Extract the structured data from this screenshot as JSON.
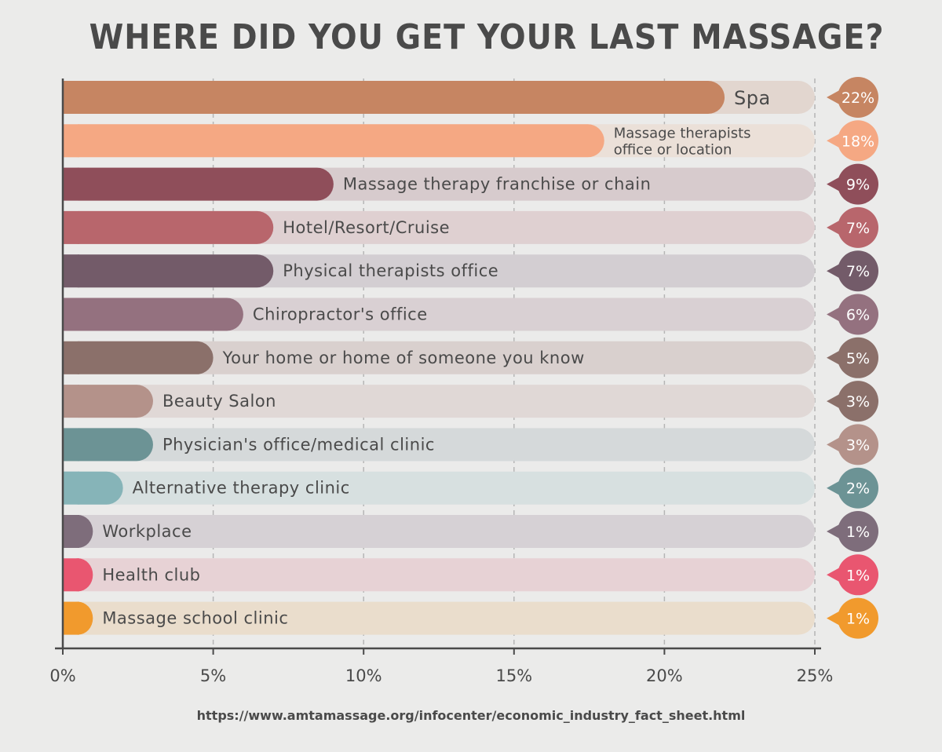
{
  "chart_data": {
    "type": "bar",
    "orientation": "horizontal",
    "title": "WHERE DID YOU GET YOUR LAST MASSAGE?",
    "categories": [
      [
        "Spa"
      ],
      [
        "Massage therapists",
        "office or location"
      ],
      [
        "Massage therapy franchise or chain"
      ],
      [
        "Hotel/Resort/Cruise"
      ],
      [
        "Physical therapists office"
      ],
      [
        "Chiropractor's office"
      ],
      [
        "Your home or home of someone you know"
      ],
      [
        "Beauty Salon"
      ],
      [
        "Physician's office/medical clinic"
      ],
      [
        "Alternative therapy clinic"
      ],
      [
        "Workplace"
      ],
      [
        "Health club"
      ],
      [
        "Massage school clinic"
      ]
    ],
    "values": [
      22,
      18,
      9,
      7,
      7,
      6,
      5,
      3,
      3,
      2,
      1,
      1,
      1
    ],
    "value_labels": [
      "22%",
      "18%",
      "9%",
      "7%",
      "7%",
      "6%",
      "5%",
      "3%",
      "3%",
      "2%",
      "1%",
      "1%",
      "1%"
    ],
    "bar_colors": [
      "#c68562",
      "#f5a883",
      "#8f4e5a",
      "#b8666c",
      "#735b69",
      "#94717f",
      "#8b706a",
      "#b4928a",
      "#6c9395",
      "#86b4b8",
      "#7e6d7b",
      "#e95670",
      "#f19a2d"
    ],
    "track_colors": [
      "#e2d6cf",
      "#ebe0d8",
      "#d7cbcd",
      "#dfd0d1",
      "#d3ced2",
      "#d9d0d3",
      "#d9d0ce",
      "#e0d8d6",
      "#d5d9da",
      "#d7e0e0",
      "#d6d1d5",
      "#e7d2d5",
      "#eaddcc"
    ],
    "badge_colors": [
      "#c68562",
      "#f5a883",
      "#8f4e5a",
      "#b8666c",
      "#735b69",
      "#94717f",
      "#8b706a",
      "#8b706a",
      "#b4928a",
      "#6c9395",
      "#7e6d7b",
      "#e95670",
      "#f19a2d"
    ],
    "x_ticks": [
      "0%",
      "5%",
      "10%",
      "15%",
      "20%",
      "25%"
    ],
    "xlim": [
      0,
      25
    ],
    "grid": "vertical-dashed",
    "axis_color": "#4a4a4a"
  },
  "source": "https://www.amtamassage.org/infocenter/economic_industry_fact_sheet.html"
}
